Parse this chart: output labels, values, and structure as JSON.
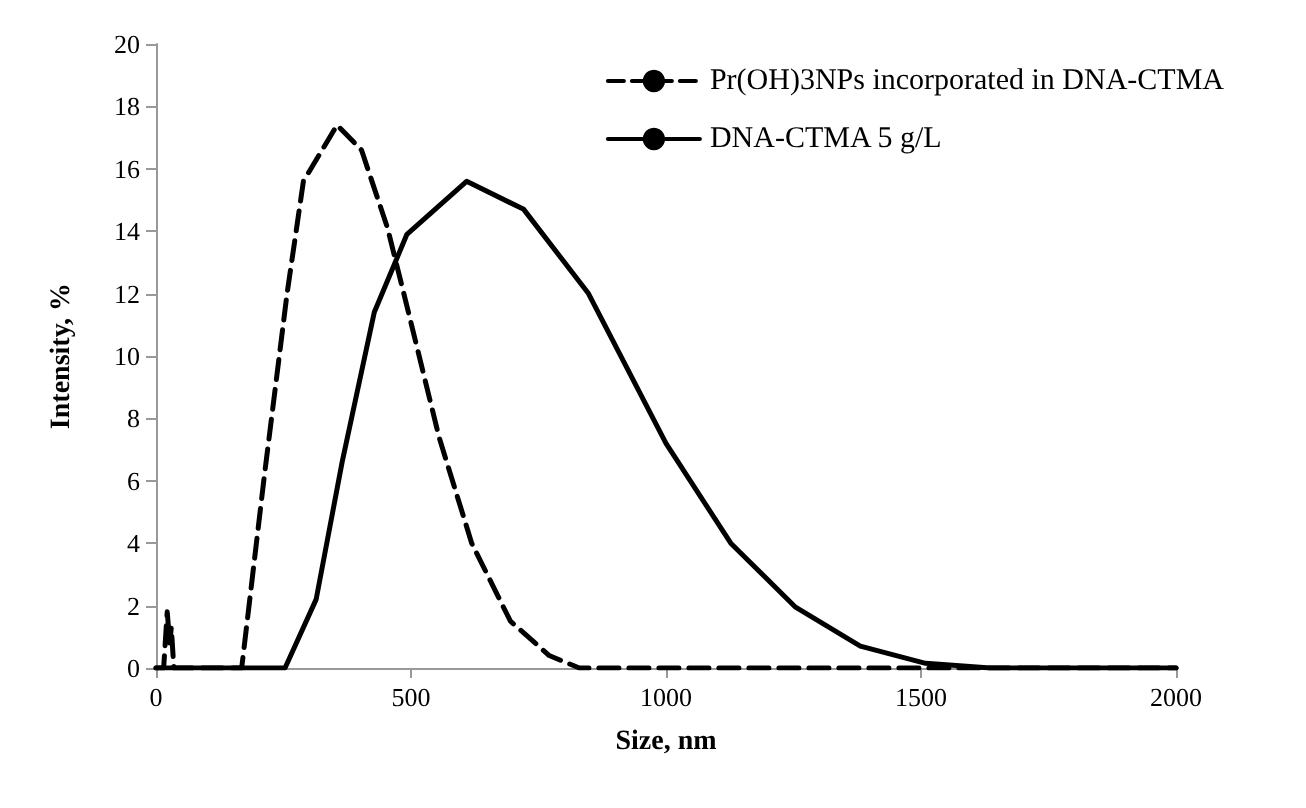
{
  "chart_data": {
    "type": "line",
    "xlabel": "Size, nm",
    "ylabel": "Intensity, %",
    "xlim": [
      0,
      2000
    ],
    "xticks": [
      0,
      500,
      1000,
      1500,
      2000
    ],
    "ylim": [
      0,
      20
    ],
    "yticks": [
      0,
      2,
      4,
      6,
      8,
      10,
      12,
      14,
      16,
      18,
      20
    ],
    "grid": false,
    "legend": "top right",
    "marker": "none",
    "series": [
      {
        "name": "Pr(OH)3NPs incorporated in DNA-CTMA",
        "color": "#000000",
        "line_style": "dashed",
        "x": [
          0,
          15,
          22,
          27,
          30,
          35,
          50,
          168,
          212,
          257,
          289,
          355,
          403,
          454,
          492,
          555,
          619,
          695,
          771,
          830,
          1000,
          1500,
          2000
        ],
        "values": [
          0,
          0,
          1.8,
          0.8,
          1.3,
          0,
          0,
          0,
          6.1,
          12.0,
          15.6,
          17.4,
          16.6,
          14.1,
          11.6,
          7.4,
          4.0,
          1.5,
          0.4,
          0,
          0,
          0,
          0
        ]
      },
      {
        "name": "DNA-CTMA 5 g/L",
        "color": "#000000",
        "line_style": "solid",
        "x": [
          0,
          253,
          314,
          365,
          428,
          492,
          609,
          721,
          848,
          1000,
          1127,
          1254,
          1381,
          1509,
          1636,
          2000
        ],
        "values": [
          0,
          0,
          2.2,
          6.6,
          11.4,
          13.9,
          15.6,
          14.7,
          12.0,
          7.2,
          4.0,
          1.95,
          0.7,
          0.15,
          0,
          0
        ]
      }
    ]
  }
}
